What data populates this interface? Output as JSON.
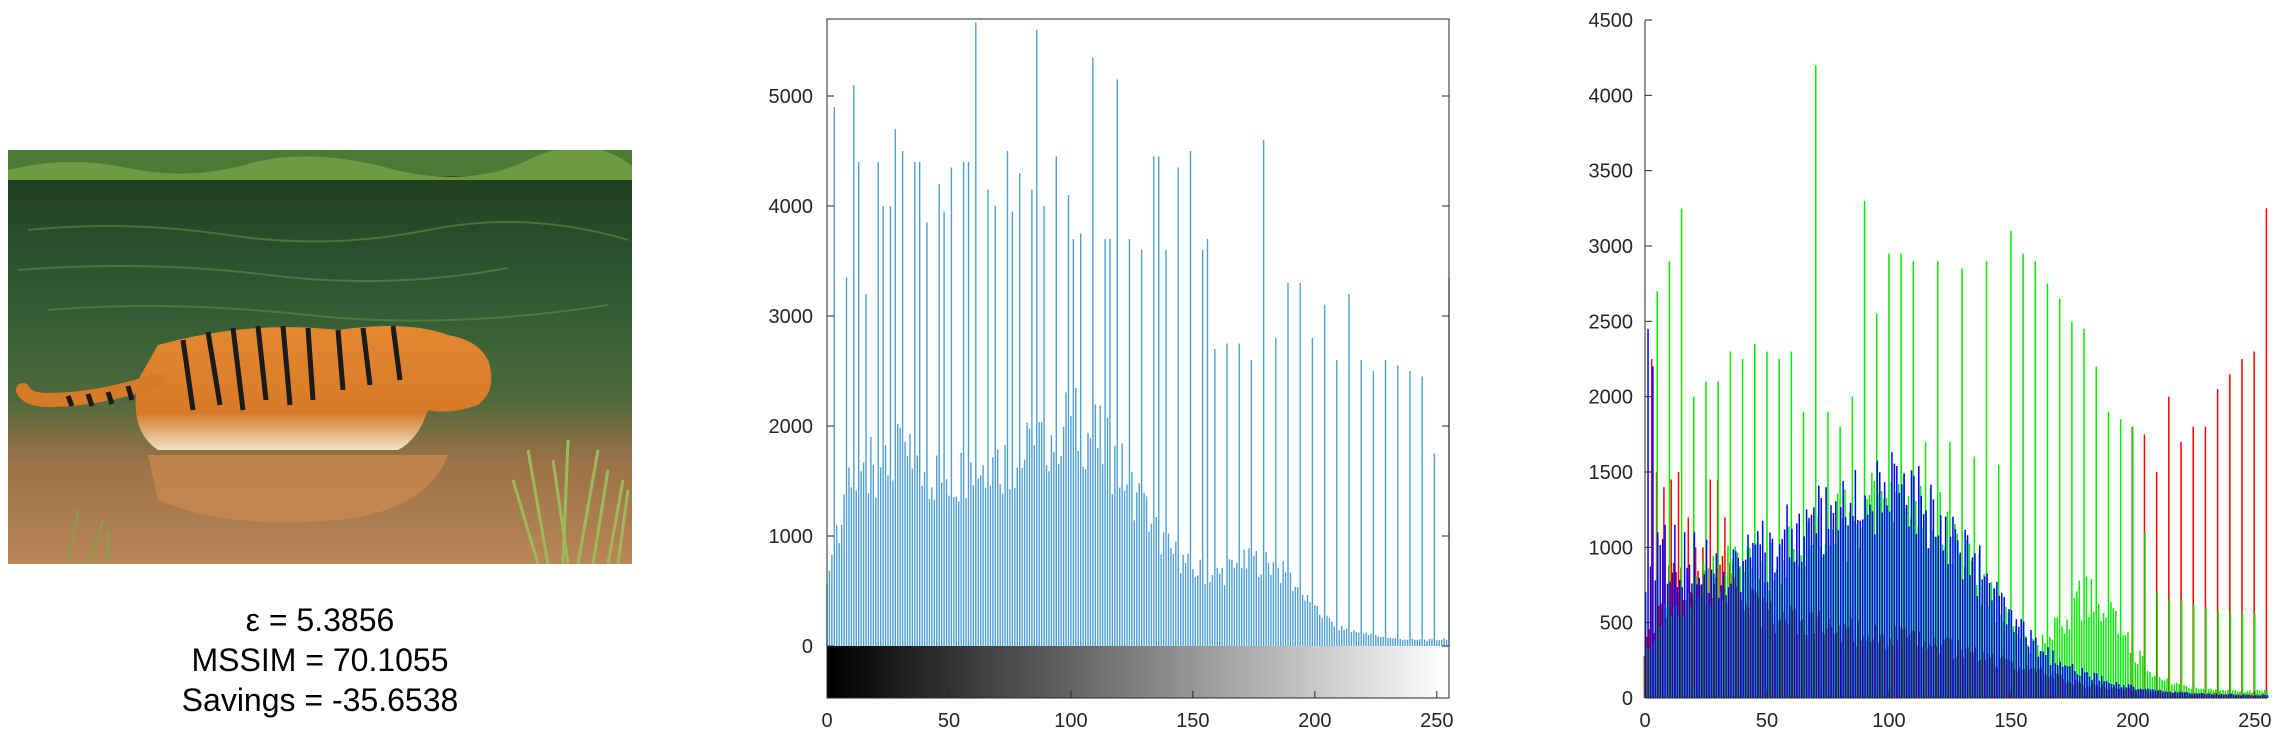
{
  "stats": {
    "epsilon": "ε = 5.3856",
    "mssim": "MSSIM = 70.1055",
    "savings": "Savings = -35.6538"
  },
  "colors": {
    "gray_bars": "#4f9fd6",
    "red": "#ff0000",
    "green": "#00ee00",
    "blue": "#0000ff",
    "axis": "#262626"
  },
  "chart_data": [
    {
      "type": "bar",
      "chart": "grayscale-histogram",
      "xlim": [
        0,
        255
      ],
      "ylim": [
        0,
        5700
      ],
      "xticks": [
        0,
        50,
        100,
        150,
        200,
        250
      ],
      "yticks": [
        0,
        1000,
        2000,
        3000,
        4000,
        5000
      ],
      "colorbar": "gray",
      "peaks_x": [
        3,
        6,
        8,
        11,
        13,
        16,
        18,
        21,
        23,
        26,
        28,
        31,
        36,
        38,
        41,
        46,
        48,
        51,
        56,
        58,
        61,
        66,
        69,
        74,
        76,
        79,
        84,
        86,
        89,
        94,
        99,
        101,
        104,
        109,
        114,
        116,
        119,
        124,
        129,
        134,
        136,
        139,
        144,
        149,
        154,
        156,
        159,
        164,
        169,
        174,
        179,
        184,
        189,
        194,
        199,
        204,
        209,
        214,
        219,
        224,
        229,
        234,
        239,
        244,
        249,
        255
      ],
      "peaks_y": [
        4900,
        1100,
        3350,
        5100,
        4400,
        3200,
        1900,
        4400,
        4000,
        4000,
        4700,
        4500,
        4400,
        4400,
        3850,
        4200,
        3950,
        4350,
        4400,
        4400,
        5670,
        4150,
        4000,
        4500,
        3950,
        4300,
        4150,
        5600,
        4000,
        4450,
        4100,
        3700,
        3750,
        5350,
        3700,
        3700,
        5150,
        3700,
        3600,
        4450,
        4450,
        3600,
        4350,
        4500,
        3600,
        3700,
        2700,
        2750,
        2750,
        2600,
        4600,
        2800,
        3300,
        3300,
        2800,
        3100,
        2600,
        3200,
        2600,
        2500,
        2600,
        2550,
        2500,
        2450,
        1750,
        3350
      ],
      "envelope_x": [
        0,
        10,
        20,
        30,
        40,
        50,
        60,
        70,
        80,
        90,
        100,
        110,
        120,
        130,
        140,
        150,
        160,
        170,
        180,
        190,
        200,
        210,
        220,
        230,
        240,
        250,
        255
      ],
      "envelope_y": [
        700,
        1600,
        1800,
        1850,
        1700,
        1650,
        1750,
        1800,
        1850,
        2050,
        2200,
        2050,
        1750,
        1350,
        950,
        750,
        700,
        800,
        850,
        650,
        350,
        180,
        120,
        80,
        60,
        60,
        80
      ]
    },
    {
      "type": "bar",
      "chart": "rgb-histogram",
      "xlim": [
        0,
        255
      ],
      "ylim": [
        0,
        4500
      ],
      "xticks": [
        0,
        50,
        100,
        150,
        200,
        250
      ],
      "yticks": [
        0,
        500,
        1000,
        1500,
        2000,
        2500,
        3000,
        3500,
        4000,
        4500
      ],
      "series": [
        {
          "color": "red",
          "peaks_x": [
            3,
            5,
            8,
            11,
            14,
            18,
            21,
            24,
            27,
            30,
            33,
            200,
            205,
            210,
            215,
            220,
            225,
            230,
            235,
            240,
            245,
            250,
            255
          ],
          "peaks_y": [
            2250,
            1500,
            1400,
            1450,
            1500,
            1200,
            1000,
            1000,
            1450,
            1450,
            1200,
            1800,
            1750,
            1500,
            2000,
            1700,
            1800,
            1800,
            2050,
            2150,
            2250,
            2300,
            3250
          ],
          "envelope_x": [
            0,
            10,
            20,
            30,
            40,
            50,
            80,
            100,
            120,
            140,
            160,
            180,
            200,
            230,
            255
          ],
          "envelope_y": [
            400,
            800,
            900,
            900,
            800,
            600,
            500,
            450,
            400,
            300,
            200,
            100,
            60,
            40,
            30
          ]
        },
        {
          "color": "green",
          "peaks_x": [
            5,
            10,
            15,
            20,
            25,
            30,
            35,
            40,
            45,
            50,
            55,
            60,
            65,
            70,
            75,
            80,
            85,
            90,
            95,
            100,
            105,
            110,
            115,
            120,
            125,
            130,
            135,
            140,
            145,
            150,
            155,
            160,
            165,
            170,
            175,
            180,
            185,
            190,
            195,
            200,
            205,
            210,
            215,
            220,
            225,
            230,
            235,
            240,
            245,
            250
          ],
          "peaks_y": [
            2700,
            2900,
            3250,
            2000,
            2100,
            2100,
            2300,
            2250,
            2350,
            2300,
            2250,
            2300,
            1900,
            4200,
            1900,
            1800,
            2000,
            3300,
            2550,
            2950,
            2950,
            2900,
            1700,
            2900,
            1700,
            2850,
            1600,
            2900,
            1550,
            3100,
            2950,
            2900,
            2750,
            2650,
            2500,
            2450,
            2200,
            1900,
            1850,
            1800,
            1100,
            700,
            650,
            650,
            620,
            600,
            580,
            570,
            560,
            560
          ],
          "envelope_x": [
            0,
            10,
            20,
            30,
            40,
            50,
            60,
            70,
            80,
            90,
            100,
            110,
            120,
            130,
            140,
            150,
            160,
            170,
            180,
            190,
            200,
            210,
            220,
            230,
            240,
            250,
            255
          ],
          "envelope_y": [
            300,
            650,
            800,
            900,
            950,
            1000,
            1050,
            1150,
            1250,
            1350,
            1400,
            1350,
            1300,
            1050,
            800,
            500,
            350,
            550,
            750,
            650,
            350,
            150,
            80,
            60,
            50,
            50,
            60
          ]
        },
        {
          "color": "blue",
          "peaks_x": [
            1,
            3,
            5,
            8,
            12,
            16,
            20
          ],
          "peaks_y": [
            2450,
            2200,
            1100,
            1150,
            1150,
            1100,
            1100
          ],
          "envelope_x": [
            0,
            10,
            20,
            30,
            40,
            50,
            60,
            70,
            80,
            90,
            100,
            110,
            120,
            130,
            140,
            150,
            160,
            170,
            180,
            190,
            200,
            210,
            220,
            230,
            240,
            250,
            255
          ],
          "envelope_y": [
            900,
            1050,
            1000,
            950,
            1000,
            1100,
            1200,
            1300,
            1400,
            1450,
            1500,
            1450,
            1350,
            1100,
            850,
            550,
            380,
            250,
            180,
            120,
            80,
            50,
            40,
            30,
            25,
            20,
            20
          ]
        }
      ]
    }
  ]
}
